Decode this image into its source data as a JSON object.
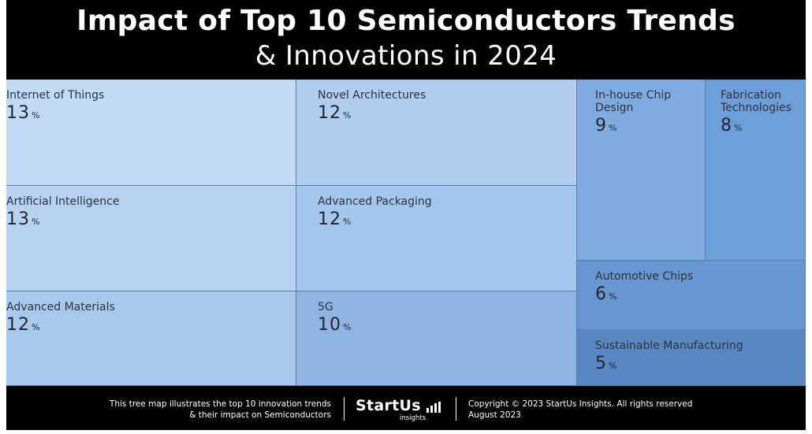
{
  "header": {
    "title_line1": "Impact of Top 10 Semiconductors Trends",
    "title_line2": "& Innovations in 2024"
  },
  "chart_data": {
    "type": "treemap",
    "title": "Impact of Top 10 Semiconductors Trends & Innovations in 2024",
    "unit": "%",
    "items": [
      {
        "label": "Internet of Things",
        "value": 13
      },
      {
        "label": "Artificial Intelligence",
        "value": 13
      },
      {
        "label": "Advanced Materials",
        "value": 12
      },
      {
        "label": "Novel Architectures",
        "value": 12
      },
      {
        "label": "Advanced Packaging",
        "value": 12
      },
      {
        "label": "5G",
        "value": 10
      },
      {
        "label": "In-house Chip Design",
        "value": 9
      },
      {
        "label": "Fabrication Technologies",
        "value": 8
      },
      {
        "label": "Automotive Chips",
        "value": 6
      },
      {
        "label": "Sustainable Manufacturing",
        "value": 5
      }
    ],
    "colors": [
      "#c3daf5",
      "#b7d2f0",
      "#a8c8ec",
      "#b0cdee",
      "#a3c6ec",
      "#8fb4e2",
      "#80abe0",
      "#6e9ed8",
      "#6796d0",
      "#5a87c2"
    ]
  },
  "footer": {
    "description_line1": "This tree map illustrates the top 10 innovation trends",
    "description_line2": "& their impact on Semiconductors",
    "logo_text": "StartUs",
    "logo_subtext": "insights",
    "copyright": "Copyright © 2023 StartUs Insights. All rights reserved",
    "date": "August 2023"
  }
}
